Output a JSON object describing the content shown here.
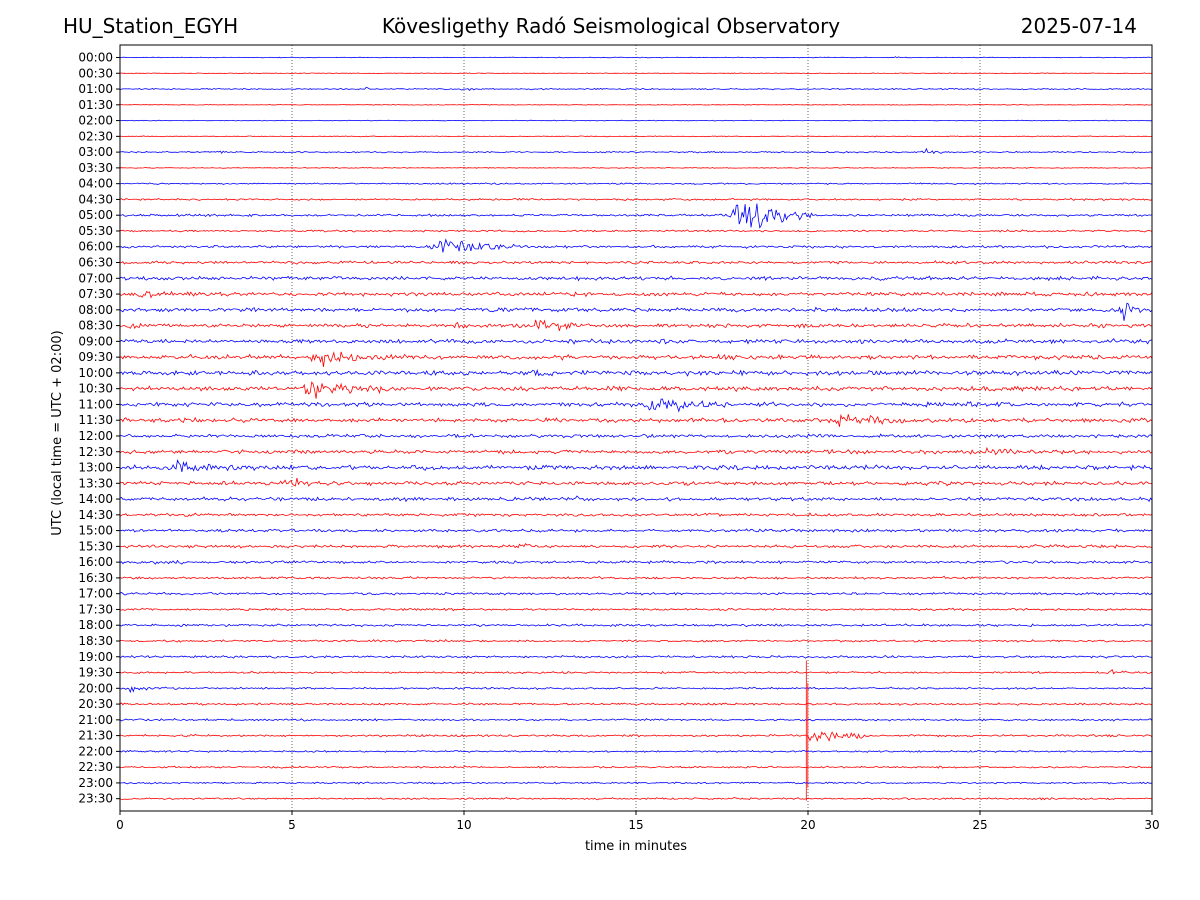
{
  "header": {
    "station": "HU_Station_EGYH",
    "title": "Kövesligethy Radó Seismological Observatory",
    "date": "2025-07-14"
  },
  "chart_data": {
    "type": "line",
    "title": "Kövesligethy Radó Seismological Observatory",
    "xlabel": "time in minutes",
    "ylabel": "UTC (local time = UTC + 02:00)",
    "xlim": [
      0,
      30
    ],
    "x_ticks": [
      "0",
      "5",
      "10",
      "15",
      "20",
      "25",
      "30"
    ],
    "grid": "vertical dotted at x = 5, 10, 15, 20, 25",
    "trace_colors": [
      "#0000ff",
      "#ff0000"
    ],
    "trace_color_rule": "alternating: even rows blue, odd rows red",
    "rows": [
      "00:00",
      "00:30",
      "01:00",
      "01:30",
      "02:00",
      "02:30",
      "03:00",
      "03:30",
      "04:00",
      "04:30",
      "05:00",
      "05:30",
      "06:00",
      "06:30",
      "07:00",
      "07:30",
      "08:00",
      "08:30",
      "09:00",
      "09:30",
      "10:00",
      "10:30",
      "11:00",
      "11:30",
      "12:00",
      "12:30",
      "13:00",
      "13:30",
      "14:00",
      "14:30",
      "15:00",
      "15:30",
      "16:00",
      "16:30",
      "17:00",
      "17:30",
      "18:00",
      "18:30",
      "19:00",
      "19:30",
      "20:00",
      "20:30",
      "21:00",
      "21:30",
      "22:00",
      "22:30",
      "23:00",
      "23:30"
    ],
    "base_noise": [
      0.5,
      0.5,
      0.9,
      0.5,
      0.5,
      0.6,
      1.0,
      0.6,
      1.0,
      1.2,
      1.5,
      1.3,
      1.8,
      2.0,
      2.4,
      2.6,
      2.6,
      2.6,
      2.8,
      3.0,
      3.0,
      3.0,
      2.8,
      2.8,
      2.2,
      2.6,
      3.0,
      2.6,
      2.4,
      2.0,
      2.0,
      2.0,
      1.8,
      1.6,
      1.6,
      1.5,
      1.6,
      1.4,
      1.6,
      1.3,
      1.3,
      1.4,
      1.4,
      1.4,
      1.2,
      1.2,
      1.2,
      1.2
    ],
    "events": [
      {
        "row": 0,
        "start": 22.5,
        "end": 22.7,
        "amp": 3
      },
      {
        "row": 2,
        "start": 7.1,
        "end": 7.4,
        "amp": 4
      },
      {
        "row": 2,
        "start": 9.8,
        "end": 11.0,
        "amp": 3
      },
      {
        "row": 6,
        "start": 2.8,
        "end": 3.1,
        "amp": 4
      },
      {
        "row": 6,
        "start": 23.2,
        "end": 24.2,
        "amp": 6
      },
      {
        "row": 6,
        "start": 29.4,
        "end": 29.6,
        "amp": 5
      },
      {
        "row": 10,
        "start": 17.6,
        "end": 20.5,
        "amp": 22
      },
      {
        "row": 12,
        "start": 8.8,
        "end": 12.5,
        "amp": 13
      },
      {
        "row": 15,
        "start": 0.0,
        "end": 3.6,
        "amp": 6
      },
      {
        "row": 16,
        "start": 29.0,
        "end": 30.0,
        "amp": 14
      },
      {
        "row": 17,
        "start": 0.0,
        "end": 1.0,
        "amp": 8
      },
      {
        "row": 17,
        "start": 9.5,
        "end": 10.8,
        "amp": 6
      },
      {
        "row": 17,
        "start": 11.9,
        "end": 14.0,
        "amp": 12
      },
      {
        "row": 19,
        "start": 5.2,
        "end": 9.2,
        "amp": 12
      },
      {
        "row": 20,
        "start": 11.8,
        "end": 13.5,
        "amp": 10
      },
      {
        "row": 21,
        "start": 5.0,
        "end": 9.5,
        "amp": 11
      },
      {
        "row": 21,
        "start": 17.8,
        "end": 18.3,
        "amp": 6
      },
      {
        "row": 22,
        "start": 14.8,
        "end": 19.2,
        "amp": 11
      },
      {
        "row": 23,
        "start": 20.2,
        "end": 24.5,
        "amp": 9
      },
      {
        "row": 25,
        "start": 24.9,
        "end": 27.0,
        "amp": 7
      },
      {
        "row": 26,
        "start": 1.2,
        "end": 4.6,
        "amp": 11
      },
      {
        "row": 26,
        "start": 29.2,
        "end": 30.0,
        "amp": 7
      },
      {
        "row": 27,
        "start": 0.0,
        "end": 0.3,
        "amp": 9
      },
      {
        "row": 27,
        "start": 4.5,
        "end": 6.5,
        "amp": 9
      },
      {
        "row": 28,
        "start": 13.0,
        "end": 14.0,
        "amp": 6
      },
      {
        "row": 31,
        "start": 11.3,
        "end": 12.6,
        "amp": 7
      },
      {
        "row": 32,
        "start": 0.5,
        "end": 4.0,
        "amp": 5
      },
      {
        "row": 33,
        "start": 23.9,
        "end": 24.1,
        "amp": 5
      },
      {
        "row": 39,
        "start": 28.6,
        "end": 30.0,
        "amp": 5
      },
      {
        "row": 40,
        "start": 0.0,
        "end": 2.2,
        "amp": 5
      },
      {
        "row": 43,
        "start": 19.9,
        "end": 21.8,
        "amp": 14
      }
    ],
    "spike": {
      "row": 43,
      "x": 19.95,
      "amp_up": 75,
      "amp_down": 65
    }
  }
}
